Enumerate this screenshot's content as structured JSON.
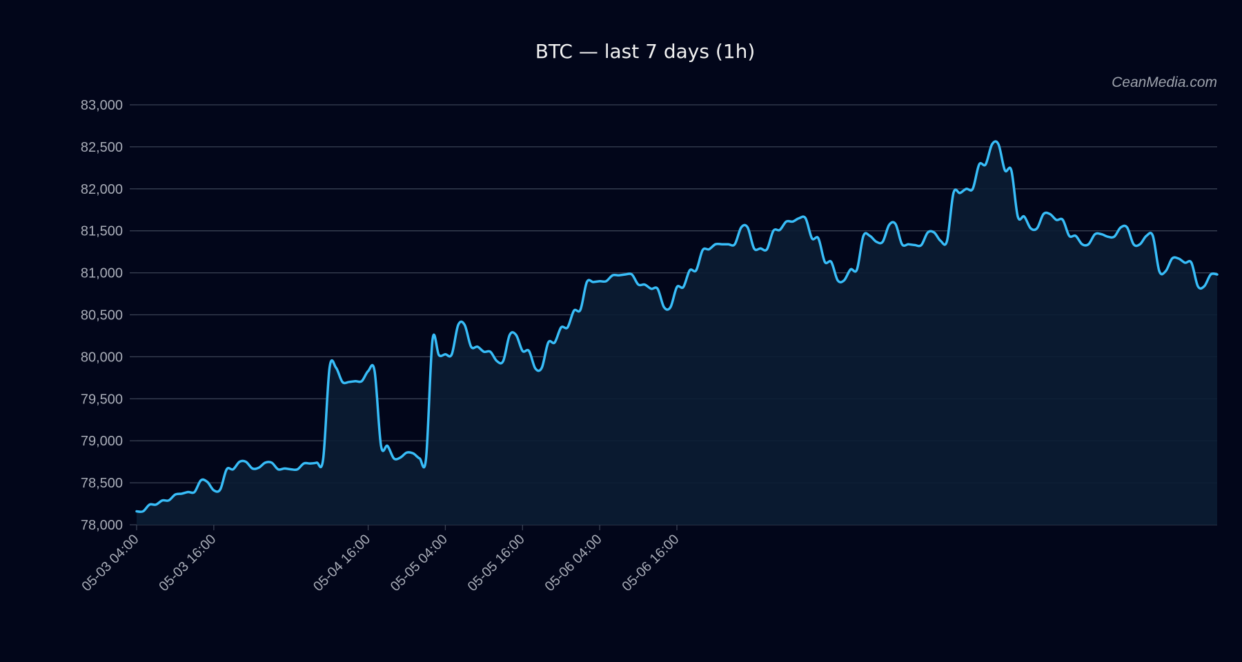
{
  "colors": {
    "background": "#02061a",
    "grid": "#3a4254",
    "line": "#38bdf8",
    "area": "#0b1d33",
    "text": "#f2f2f2",
    "tick_text": "#a9adb8",
    "watermark": "#9ea3ad"
  },
  "watermark": "CeanMedia.com",
  "chart_data": {
    "type": "area",
    "title": "BTC — last 7 days (1h)",
    "xlabel": "",
    "ylabel": "",
    "ylim": [
      78000,
      83000
    ],
    "y_ticks": [
      78000,
      78500,
      79000,
      79500,
      80000,
      80500,
      81000,
      81500,
      82000,
      82500,
      83000
    ],
    "y_tick_labels": [
      "78,000",
      "78,500",
      "79,000",
      "79,500",
      "80,000",
      "80,500",
      "81,000",
      "81,500",
      "82,000",
      "82,500",
      "83,000"
    ],
    "x_ticks": [
      "05-03 04:00",
      "05-03 16:00",
      "05-04 16:00",
      "05-05 04:00",
      "05-05 16:00",
      "05-06 04:00",
      "05-06 16:00"
    ],
    "grid": true,
    "series": [
      {
        "values": [
          78160,
          78160,
          78240,
          78240,
          78290,
          78290,
          78360,
          78370,
          78390,
          78390,
          78530,
          78510,
          78410,
          78420,
          78660,
          78660,
          78750,
          78750,
          78670,
          78680,
          78740,
          78740,
          78660,
          78670,
          78660,
          78660,
          78730,
          78730,
          78740,
          78780,
          79870,
          79870,
          79700,
          79700,
          79710,
          79710,
          79830,
          79830,
          78940,
          78940,
          78790,
          78800,
          78860,
          78850,
          78790,
          78790,
          80200,
          80020,
          80030,
          80030,
          80380,
          80380,
          80120,
          80120,
          80060,
          80060,
          79950,
          79950,
          80260,
          80260,
          80070,
          80070,
          79860,
          79870,
          80170,
          80170,
          80350,
          80350,
          80550,
          80560,
          80890,
          80890,
          80900,
          80900,
          80970,
          80970,
          80980,
          80980,
          80860,
          80860,
          80810,
          80810,
          80590,
          80590,
          80830,
          80830,
          81030,
          81030,
          81270,
          81280,
          81340,
          81340,
          81340,
          81340,
          81540,
          81540,
          81290,
          81290,
          81280,
          81500,
          81510,
          81610,
          81610,
          81650,
          81650,
          81410,
          81410,
          81130,
          81130,
          80910,
          80910,
          81040,
          81040,
          81440,
          81440,
          81370,
          81370,
          81570,
          81580,
          81340,
          81340,
          81330,
          81330,
          81480,
          81480,
          81380,
          81380,
          81950,
          81950,
          82000,
          82000,
          82290,
          82290,
          82530,
          82530,
          82220,
          82220,
          81670,
          81670,
          81530,
          81530,
          81700,
          81700,
          81630,
          81630,
          81440,
          81440,
          81340,
          81340,
          81460,
          81460,
          81430,
          81430,
          81540,
          81540,
          81340,
          81340,
          81440,
          81440,
          81020,
          81020,
          81170,
          81170,
          81120,
          81120,
          80840,
          80840,
          80980,
          80980
        ]
      }
    ]
  }
}
